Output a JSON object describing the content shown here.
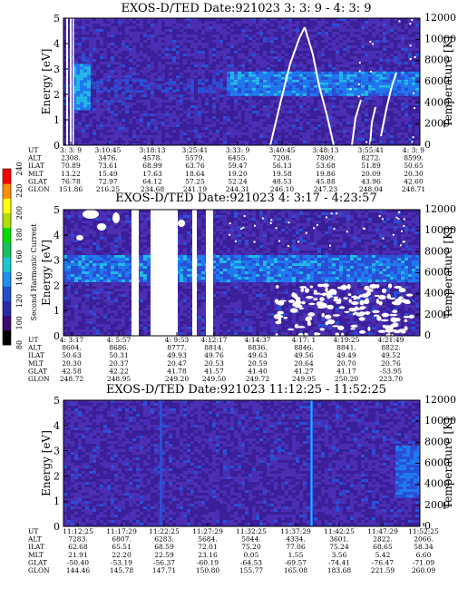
{
  "chart_data": [
    {
      "type": "heatmap",
      "title": "EXOS-D/TED   Date:921023  3: 3: 9 - 4: 3: 9",
      "ylabel": "Energy [eV]",
      "ylabel_right": "Temperature [K]",
      "ylim": [
        0,
        5
      ],
      "yticks": [
        "0",
        "1",
        "2",
        "3",
        "4",
        "5"
      ],
      "ylim_right": [
        0,
        12000
      ],
      "yticks_right": [
        "0",
        "2000",
        "4000",
        "6000",
        "8000",
        "10000",
        "12000"
      ],
      "ephemeris": {
        "labels": [
          "UT",
          "ALT",
          "ILAT",
          "MLT",
          "GLAT",
          "GLON"
        ],
        "columns": [
          [
            "3: 3: 9",
            "2308.",
            "70.89",
            "13.22",
            "76.78",
            "151.86"
          ],
          [
            "3:10:45",
            "3476.",
            "73.61",
            "15.49",
            "72.97",
            "216.25"
          ],
          [
            "3:18:13",
            "4578.",
            "68.99",
            "17.63",
            "64.12",
            "234.68"
          ],
          [
            "3:25:41",
            "5579.",
            "63.76",
            "18.64",
            "57.25",
            "241.19"
          ],
          [
            "3:33: 9",
            "6455.",
            "59.47",
            "19.20",
            "52.24",
            "244.31"
          ],
          [
            "3:40:45",
            "7208.",
            "56.13",
            "19.58",
            "48.53",
            "246.10"
          ],
          [
            "3:48:13",
            "7809.",
            "53.68",
            "19.86",
            "45.88",
            "247.23"
          ],
          [
            "3:55:41",
            "8272.",
            "51.89",
            "20.09",
            "43.96",
            "248.04"
          ],
          [
            "4: 3: 9",
            "8599.",
            "50.65",
            "20.30",
            "42.60",
            "248.71"
          ]
        ]
      }
    },
    {
      "type": "heatmap",
      "title": "EXOS-D/TED   Date:921023  4: 3:17 - 4:23:57",
      "ylabel": "Energy [eV]",
      "ylabel_right": "Temperature [K]",
      "ylim": [
        0,
        5
      ],
      "yticks": [
        "0",
        "1",
        "2",
        "3",
        "4",
        "5"
      ],
      "ylim_right": [
        0,
        12000
      ],
      "yticks_right": [
        "0",
        "2000",
        "4000",
        "6000",
        "8000",
        "10000",
        "12000"
      ],
      "ephemeris": {
        "labels": [
          "UT",
          "ALT",
          "ILAT",
          "MLT",
          "GLAT",
          "GLON"
        ],
        "columns": [
          [
            "4: 3:17",
            "8604.",
            "50.63",
            "20.30",
            "42.58",
            "248.72"
          ],
          [
            "4: 5:57",
            "8686.",
            "50.31",
            "20.37",
            "42.22",
            "248.95"
          ],
          [
            "4: 9:53",
            "8777.",
            "49.93",
            "20.47",
            "41.78",
            "249.20"
          ],
          [
            "4:12:17",
            "8814.",
            "49.76",
            "20.53",
            "41.57",
            "249.50"
          ],
          [
            "4:14:37",
            "8836.",
            "49.63",
            "20.59",
            "41.40",
            "249.72"
          ],
          [
            "4:17: 1",
            "8846.",
            "49.56",
            "20.64",
            "41.27",
            "249.95"
          ],
          [
            "4:19:25",
            "8841.",
            "49.49",
            "20.70",
            "41.17",
            "250.20"
          ],
          [
            "4:21:49",
            "8822.",
            "49.52",
            "20.76",
            "-53.95",
            "223.70"
          ]
        ]
      }
    },
    {
      "type": "heatmap",
      "title": "EXOS-D/TED   Date:921023  11:12:25 - 11:52:25",
      "ylabel": "Energy [eV]",
      "ylabel_right": "Temperature [K]",
      "ylim": [
        0,
        5
      ],
      "yticks": [
        "0",
        "1",
        "2",
        "3",
        "4",
        "5"
      ],
      "ylim_right": [
        0,
        12000
      ],
      "yticks_right": [
        "0",
        "2000",
        "4000",
        "6000",
        "8000",
        "10000",
        "12000"
      ],
      "ephemeris": {
        "labels": [
          "UT",
          "ALT",
          "ILAT",
          "MLT",
          "GLAT",
          "GLON"
        ],
        "columns": [
          [
            "11:12:25",
            "7283.",
            "62.68",
            "21.91",
            "-50.40",
            "144.46"
          ],
          [
            "11:17:29",
            "6807.",
            "65.51",
            "22.20",
            "-53.19",
            "145.78"
          ],
          [
            "11:22:25",
            "6283.",
            "68.59",
            "22.59",
            "-56.37",
            "147.71"
          ],
          [
            "11:27:29",
            "5684.",
            "72.01",
            "23.16",
            "-60.19",
            "150.80"
          ],
          [
            "11:32:25",
            "5044.",
            "75.20",
            "0.05",
            "-64.53",
            "155.77"
          ],
          [
            "11:37:29",
            "4334.",
            "77.06",
            "1.55",
            "-69.57",
            "165.08"
          ],
          [
            "11:42:25",
            "3601.",
            "75.24",
            "3.56",
            "-74.41",
            "183.68"
          ],
          [
            "11:47:29",
            "2822.",
            "68.65",
            "5.42",
            "-76.47",
            "221.59"
          ],
          [
            "11:52:25",
            "2066.",
            "58.34",
            "6.60",
            "-71.09",
            "260.09"
          ]
        ]
      }
    }
  ],
  "colorbar": {
    "label": "Second Harmonic Current",
    "ticks": [
      "80",
      "100",
      "120",
      "140",
      "160",
      "180",
      "200",
      "220",
      "240"
    ],
    "range": [
      80,
      240
    ],
    "colors": [
      "#000000",
      "#3a0a6e",
      "#2a2aa8",
      "#1e50d0",
      "#1f8ff0",
      "#19c8d2",
      "#17c060",
      "#00e000",
      "#b0e000",
      "#ffff00",
      "#ff9000",
      "#ff0000"
    ]
  }
}
